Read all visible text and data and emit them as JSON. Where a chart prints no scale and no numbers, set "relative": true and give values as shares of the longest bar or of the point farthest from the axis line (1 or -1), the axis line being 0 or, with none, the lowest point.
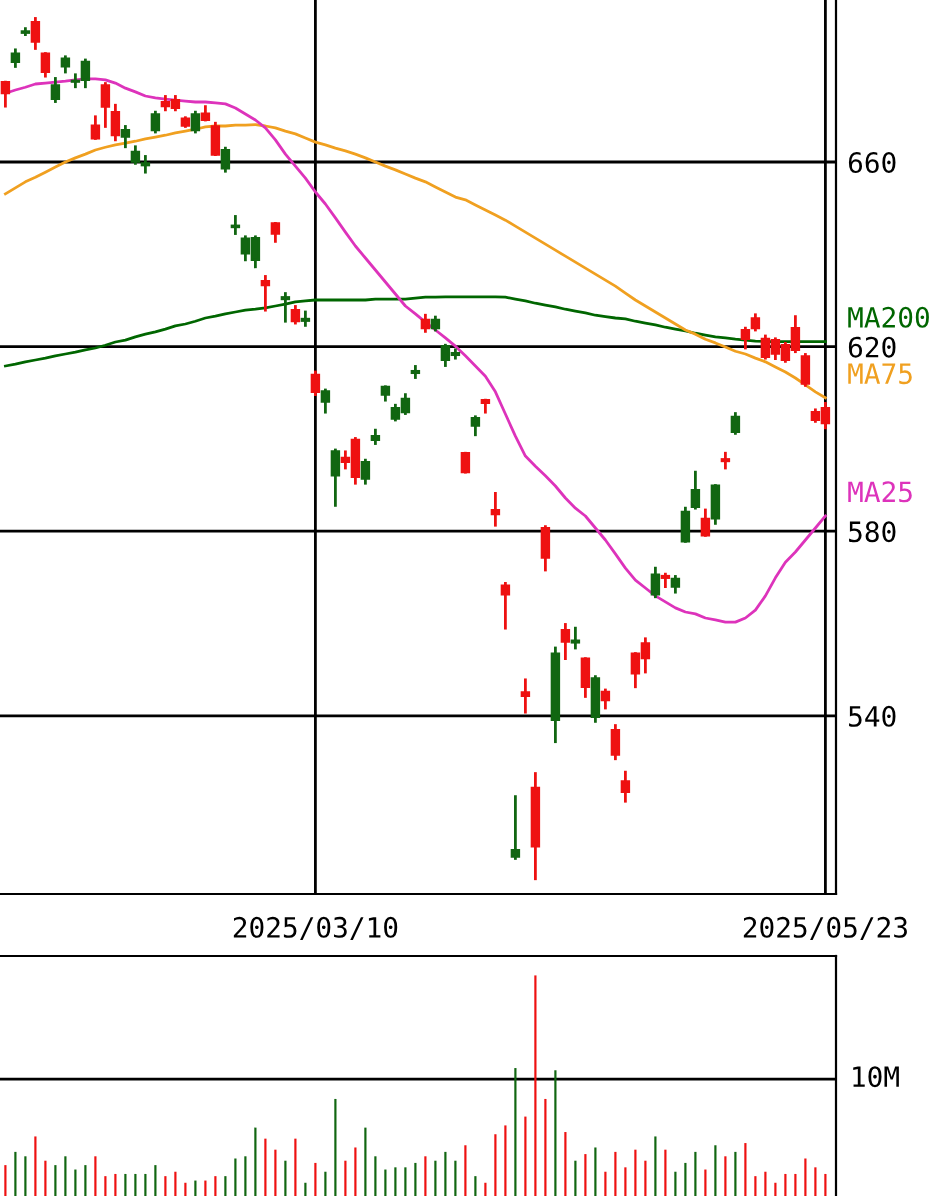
{
  "chart_data": [
    {
      "type": "candlestick",
      "categories": [
        null,
        null,
        null,
        null,
        null,
        null,
        null,
        null,
        null,
        null,
        null,
        null,
        null,
        null,
        null,
        null,
        null,
        null,
        null,
        null,
        null,
        null,
        null,
        null,
        null,
        null,
        null,
        null,
        null,
        null,
        null,
        "2025/03/10",
        null,
        null,
        null,
        null,
        null,
        null,
        null,
        null,
        null,
        null,
        null,
        null,
        null,
        null,
        null,
        null,
        null,
        null,
        null,
        null,
        null,
        null,
        null,
        null,
        null,
        null,
        null,
        null,
        null,
        null,
        null,
        null,
        null,
        null,
        null,
        null,
        null,
        null,
        null,
        null,
        null,
        null,
        null,
        null,
        null,
        null,
        null,
        null,
        null,
        null,
        "2025/05/23"
      ],
      "ohlc": [
        [
          677.3,
          677.3,
          672.1,
          674.9
        ],
        [
          681.7,
          684.3,
          680.7,
          683.5
        ],
        [
          688.0,
          688.9,
          687.6,
          688.3
        ],
        [
          690.3,
          691.1,
          684.6,
          686.1
        ],
        [
          683.5,
          683.5,
          678.6,
          679.5
        ],
        [
          673.7,
          678.1,
          673.1,
          676.6
        ],
        [
          680.7,
          682.8,
          679.5,
          682.4
        ],
        [
          677.4,
          678.9,
          676.3,
          677.6
        ],
        [
          677.8,
          682.1,
          676.3,
          681.7
        ],
        [
          667.9,
          669.8,
          665.1,
          665.1
        ],
        [
          676.6,
          677.0,
          667.7,
          672.0
        ],
        [
          670.8,
          672.3,
          664.8,
          665.8
        ],
        [
          665.5,
          667.7,
          663.3,
          666.9
        ],
        [
          660.1,
          663.3,
          659.7,
          662.2
        ],
        [
          659.3,
          661.2,
          657.8,
          659.7
        ],
        [
          666.9,
          670.8,
          666.5,
          670.3
        ],
        [
          673.0,
          674.2,
          671.3,
          672.1
        ],
        [
          673.4,
          674.2,
          671.3,
          671.7
        ],
        [
          669.4,
          669.6,
          667.7,
          667.9
        ],
        [
          666.9,
          670.8,
          666.5,
          670.3
        ],
        [
          670.5,
          672.0,
          669.1,
          669.1
        ],
        [
          667.7,
          668.4,
          661.6,
          661.6
        ],
        [
          658.6,
          663.0,
          658.0,
          662.6
        ],
        [
          645.9,
          648.2,
          644.5,
          646.2
        ],
        [
          640.2,
          643.8,
          638.8,
          643.4
        ],
        [
          638.8,
          643.8,
          637.3,
          643.5
        ],
        [
          634.2,
          635.2,
          627.9,
          633.3
        ],
        [
          646.7,
          646.7,
          642.8,
          644.5
        ],
        [
          630.3,
          631.5,
          625.5,
          630.7
        ],
        [
          627.9,
          628.7,
          625.1,
          625.5
        ],
        [
          625.6,
          627.5,
          624.6,
          626.0
        ],
        [
          613.9,
          614.5,
          609.6,
          610.2
        ],
        [
          608.1,
          610.6,
          605.8,
          610.3
        ],
        [
          592.1,
          597.6,
          585.6,
          597.3
        ],
        [
          595.9,
          597.2,
          593.7,
          595.0
        ],
        [
          599.8,
          600.1,
          590.4,
          591.8
        ],
        [
          591.4,
          595.4,
          590.4,
          595.0
        ],
        [
          599.8,
          601.9,
          599.0,
          600.6
        ],
        [
          609.6,
          611.3,
          608.4,
          611.3
        ],
        [
          604.4,
          607.3,
          604.1,
          606.7
        ],
        [
          605.8,
          609.6,
          605.5,
          608.7
        ],
        [
          614.3,
          615.7,
          613.3,
          614.7
        ],
        [
          625.8,
          626.8,
          623.3,
          624.0
        ],
        [
          624.0,
          626.4,
          623.6,
          625.8
        ],
        [
          617.1,
          620.3,
          615.9,
          620.1
        ],
        [
          618.2,
          619.3,
          617.5,
          618.6
        ],
        [
          596.9,
          596.9,
          592.8,
          592.8
        ],
        [
          602.9,
          604.8,
          600.9,
          604.5
        ],
        [
          608.4,
          608.4,
          605.8,
          607.8
        ],
        [
          584.6,
          588.2,
          581.3,
          583.7
        ],
        [
          568.2,
          568.7,
          559.0,
          566.3
        ],
        [
          509.5,
          522.5,
          509.1,
          510.9
        ],
        [
          545.1,
          547.8,
          540.8,
          544.3
        ],
        [
          524.4,
          527.5,
          504.7,
          511.7
        ],
        [
          580.7,
          581.0,
          571.6,
          574.3
        ],
        [
          539.1,
          554.7,
          534.4,
          553.5
        ],
        [
          558.6,
          559.8,
          552.4,
          556.1
        ],
        [
          555.9,
          559.0,
          554.7,
          556.3
        ],
        [
          552.4,
          552.4,
          544.2,
          546.3
        ],
        [
          539.8,
          548.5,
          538.8,
          548.1
        ],
        [
          545.2,
          545.6,
          541.7,
          543.4
        ],
        [
          536.9,
          537.9,
          530.7,
          531.6
        ],
        [
          525.8,
          527.8,
          521.5,
          523.5
        ],
        [
          553.5,
          553.5,
          546.3,
          549.2
        ],
        [
          555.7,
          556.7,
          549.5,
          552.5
        ],
        [
          566.3,
          572.0,
          565.8,
          570.6
        ],
        [
          570.3,
          570.7,
          568.0,
          569.9
        ],
        [
          568.0,
          570.2,
          566.8,
          569.7
        ],
        [
          577.8,
          585.0,
          577.8,
          584.2
        ],
        [
          585.3,
          592.8,
          585.0,
          588.9
        ],
        [
          582.7,
          584.6,
          579.1,
          579.1
        ],
        [
          582.8,
          589.9,
          581.7,
          589.9
        ],
        [
          595.6,
          596.9,
          593.7,
          595.2
        ],
        [
          601.5,
          605.5,
          601.2,
          604.8
        ],
        [
          623.6,
          624.0,
          619.7,
          621.7
        ],
        [
          626.1,
          626.9,
          623.6,
          624.0
        ],
        [
          621.7,
          622.3,
          617.5,
          617.8
        ],
        [
          621.4,
          621.7,
          617.4,
          618.5
        ],
        [
          620.3,
          620.7,
          616.8,
          617.1
        ],
        [
          624.0,
          626.5,
          618.9,
          619.3
        ],
        [
          617.9,
          618.3,
          611.6,
          612.0
        ],
        [
          605.8,
          606.3,
          603.8,
          604.1
        ],
        [
          606.7,
          607.7,
          602.4,
          603.4
        ]
      ],
      "colors": [
        "#ee1111",
        "#116611",
        "#116611",
        "#ee1111",
        "#ee1111",
        "#116611",
        "#116611",
        "#116611",
        "#116611",
        "#ee1111",
        "#ee1111",
        "#ee1111",
        "#116611",
        "#116611",
        "#116611",
        "#116611",
        "#ee1111",
        "#ee1111",
        "#ee1111",
        "#116611",
        "#ee1111",
        "#ee1111",
        "#116611",
        "#116611",
        "#116611",
        "#116611",
        "#ee1111",
        "#ee1111",
        "#116611",
        "#ee1111",
        "#116611",
        "#ee1111",
        "#116611",
        "#116611",
        "#ee1111",
        "#ee1111",
        "#116611",
        "#116611",
        "#116611",
        "#116611",
        "#116611",
        "#116611",
        "#ee1111",
        "#116611",
        "#116611",
        "#116611",
        "#ee1111",
        "#116611",
        "#ee1111",
        "#ee1111",
        "#ee1111",
        "#116611",
        "#ee1111",
        "#ee1111",
        "#ee1111",
        "#116611",
        "#ee1111",
        "#116611",
        "#ee1111",
        "#116611",
        "#ee1111",
        "#ee1111",
        "#ee1111",
        "#ee1111",
        "#ee1111",
        "#116611",
        "#ee1111",
        "#116611",
        "#116611",
        "#116611",
        "#ee1111",
        "#116611",
        "#ee1111",
        "#116611",
        "#ee1111",
        "#ee1111",
        "#ee1111",
        "#ee1111",
        "#ee1111",
        "#ee1111",
        "#ee1111",
        "#ee1111",
        "#ee1111"
      ],
      "series": [
        {
          "type": "line",
          "name": "MA200",
          "color": "#006600",
          "values": [
            615.8,
            616.2,
            616.7,
            617.1,
            617.5,
            618.0,
            618.4,
            618.8,
            619.3,
            619.7,
            620.3,
            621.0,
            621.4,
            622.1,
            622.7,
            623.2,
            623.8,
            624.5,
            624.9,
            625.5,
            626.2,
            626.6,
            627.1,
            627.5,
            627.9,
            628.1,
            628.4,
            628.8,
            629.2,
            629.7,
            629.9,
            630.1,
            630.1,
            630.1,
            630.1,
            630.1,
            630.1,
            630.3,
            630.3,
            630.3,
            630.3,
            630.5,
            630.7,
            630.7,
            630.8,
            630.8,
            630.8,
            630.8,
            630.8,
            630.8,
            630.7,
            630.3,
            629.9,
            629.4,
            629.0,
            628.6,
            628.1,
            627.7,
            627.3,
            626.8,
            626.5,
            626.2,
            626.0,
            625.5,
            625.1,
            624.7,
            624.2,
            623.8,
            623.4,
            622.9,
            622.5,
            622.1,
            621.9,
            621.6,
            621.4,
            621.2,
            621.1,
            621.1,
            621.1,
            621.1,
            621.1,
            621.1,
            621.1
          ]
        },
        {
          "type": "line",
          "name": "MA75",
          "color": "#f0a020",
          "values": [
            653.1,
            654.4,
            655.7,
            656.7,
            657.8,
            658.9,
            660.0,
            660.9,
            661.7,
            662.6,
            663.2,
            663.7,
            664.1,
            664.5,
            665.0,
            665.4,
            665.8,
            666.3,
            666.7,
            667.1,
            667.6,
            667.8,
            667.8,
            668.0,
            668.0,
            668.1,
            667.8,
            667.4,
            666.7,
            666.1,
            665.2,
            664.3,
            663.7,
            663.0,
            662.4,
            661.7,
            660.9,
            660.0,
            659.1,
            658.3,
            657.4,
            656.5,
            655.7,
            654.6,
            653.5,
            652.4,
            651.8,
            650.7,
            649.6,
            648.5,
            647.4,
            646.1,
            644.8,
            643.5,
            642.2,
            640.9,
            639.6,
            638.3,
            637.0,
            635.7,
            634.4,
            633.1,
            631.6,
            630.1,
            628.8,
            627.5,
            626.2,
            624.9,
            623.6,
            622.7,
            621.6,
            620.8,
            619.9,
            619.0,
            618.4,
            617.5,
            616.7,
            615.6,
            614.5,
            613.2,
            611.7,
            610.2,
            608.9
          ]
        },
        {
          "type": "line",
          "name": "MA25",
          "color": "#dd33bb",
          "values": [
            674.9,
            675.6,
            676.2,
            676.9,
            677.1,
            677.3,
            677.5,
            677.8,
            678.0,
            678.0,
            677.8,
            677.1,
            676.0,
            675.2,
            674.3,
            673.9,
            673.6,
            673.4,
            673.2,
            673.0,
            673.0,
            672.8,
            672.6,
            671.7,
            670.4,
            669.1,
            667.4,
            664.8,
            661.7,
            659.1,
            656.5,
            653.5,
            650.9,
            647.9,
            644.8,
            641.8,
            639.2,
            636.6,
            634.0,
            631.4,
            628.8,
            627.1,
            625.3,
            623.6,
            621.9,
            620.1,
            618.0,
            615.8,
            613.6,
            610.2,
            605.4,
            600.6,
            596.3,
            594.1,
            592.0,
            589.8,
            587.2,
            585.0,
            583.3,
            580.7,
            578.1,
            575.1,
            572.0,
            569.4,
            567.7,
            566.0,
            564.7,
            563.4,
            562.5,
            562.1,
            561.2,
            560.8,
            560.3,
            560.3,
            561.2,
            562.9,
            566.0,
            569.9,
            573.3,
            575.5,
            578.1,
            580.7,
            583.3
          ]
        }
      ],
      "ylim": [
        501.4,
        695.1
      ],
      "yticks": [
        540,
        580,
        620,
        660
      ],
      "grid": true
    },
    {
      "type": "bar",
      "categories": [
        null,
        null,
        null,
        null,
        null,
        null,
        null,
        null,
        null,
        null,
        null,
        null,
        null,
        null,
        null,
        null,
        null,
        null,
        null,
        null,
        null,
        null,
        null,
        null,
        null,
        null,
        null,
        null,
        null,
        null,
        null,
        null,
        null,
        null,
        null,
        null,
        null,
        null,
        null,
        null,
        null,
        null,
        null,
        null,
        null,
        null,
        null,
        null,
        null,
        null,
        null,
        null,
        null,
        null,
        null,
        null,
        null,
        null,
        null,
        null,
        null,
        null,
        null,
        null,
        null,
        null,
        null,
        null,
        null,
        null,
        null,
        null,
        null,
        null,
        null,
        null,
        null,
        null,
        null,
        null,
        null,
        null,
        null
      ],
      "values": [
        0.14,
        0.2,
        0.18,
        0.27,
        0.16,
        0.14,
        0.18,
        0.12,
        0.14,
        0.18,
        0.09,
        0.1,
        0.1,
        0.1,
        0.1,
        0.14,
        0.09,
        0.11,
        0.06,
        0.07,
        0.07,
        0.09,
        0.09,
        0.17,
        0.18,
        0.31,
        0.26,
        0.21,
        0.16,
        0.26,
        0.06,
        0.15,
        0.11,
        0.44,
        0.16,
        0.22,
        0.31,
        0.18,
        0.12,
        0.13,
        0.13,
        0.15,
        0.18,
        0.16,
        0.2,
        0.16,
        0.23,
        0.09,
        0.06,
        0.28,
        0.32,
        0.58,
        0.36,
        1,
        0.44,
        0.57,
        0.29,
        0.16,
        0.19,
        0.22,
        0.11,
        0.2,
        0.13,
        0.21,
        0.16,
        0.27,
        0.21,
        0.11,
        0.15,
        0.2,
        0.12,
        0.23,
        0.18,
        0.2,
        0.24,
        0.09,
        0.11,
        0.06,
        0.1,
        0.1,
        0.17,
        0.13,
        0.1
      ],
      "colors": [
        "#ee1111",
        "#116611",
        "#116611",
        "#ee1111",
        "#ee1111",
        "#116611",
        "#116611",
        "#116611",
        "#116611",
        "#ee1111",
        "#ee1111",
        "#ee1111",
        "#116611",
        "#116611",
        "#116611",
        "#116611",
        "#ee1111",
        "#ee1111",
        "#ee1111",
        "#116611",
        "#ee1111",
        "#ee1111",
        "#116611",
        "#116611",
        "#116611",
        "#116611",
        "#ee1111",
        "#ee1111",
        "#116611",
        "#ee1111",
        "#116611",
        "#ee1111",
        "#116611",
        "#116611",
        "#ee1111",
        "#ee1111",
        "#116611",
        "#116611",
        "#116611",
        "#116611",
        "#116611",
        "#116611",
        "#ee1111",
        "#116611",
        "#116611",
        "#116611",
        "#ee1111",
        "#116611",
        "#ee1111",
        "#ee1111",
        "#ee1111",
        "#116611",
        "#ee1111",
        "#ee1111",
        "#ee1111",
        "#116611",
        "#ee1111",
        "#116611",
        "#ee1111",
        "#116611",
        "#ee1111",
        "#ee1111",
        "#ee1111",
        "#ee1111",
        "#ee1111",
        "#116611",
        "#ee1111",
        "#116611",
        "#116611",
        "#116611",
        "#ee1111",
        "#116611",
        "#ee1111",
        "#116611",
        "#ee1111",
        "#ee1111",
        "#ee1111",
        "#ee1111",
        "#ee1111",
        "#ee1111",
        "#ee1111",
        "#ee1111",
        "#ee1111"
      ],
      "relative": true,
      "ref_lines": [
        {
          "axis": "y",
          "value": 0.53,
          "label": "10M",
          "color": "#000000"
        }
      ]
    }
  ]
}
